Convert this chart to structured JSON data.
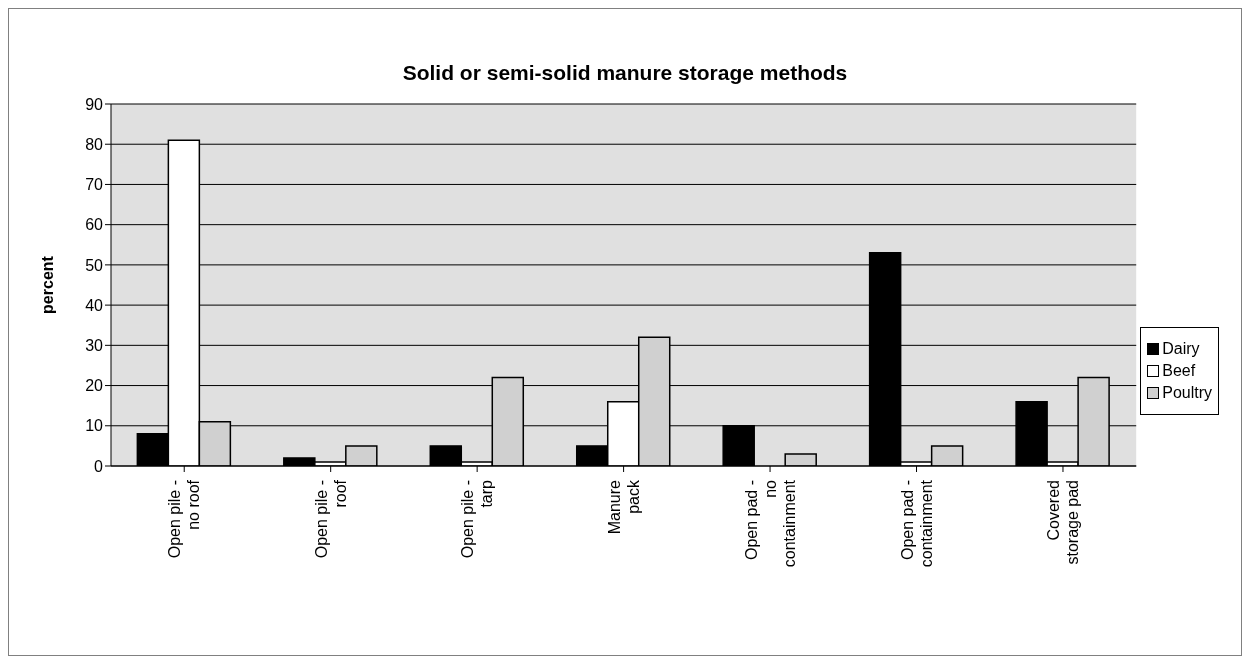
{
  "chart_data": {
    "type": "bar",
    "title": "Solid or semi-solid manure storage methods",
    "ylabel": "percent",
    "categories": [
      "Open pile -\nno roof",
      "Open pile -\nroof",
      "Open pile -\ntarp",
      "Manure\npack",
      "Open pad -\nno\ncontainment",
      "Open pad -\ncontainment",
      "Covered\nstorage pad"
    ],
    "series": [
      {
        "name": "Dairy",
        "color": "#000000",
        "values": [
          8,
          2,
          5,
          5,
          10,
          53,
          16
        ]
      },
      {
        "name": "Beef",
        "color": "#ffffff",
        "values": [
          81,
          1,
          1,
          16,
          0,
          1,
          1
        ]
      },
      {
        "name": "Poultry",
        "color": "#d0d0d0",
        "values": [
          11,
          5,
          22,
          32,
          3,
          5,
          22
        ]
      }
    ],
    "ylim": [
      0,
      90
    ],
    "yticks": [
      0,
      10,
      20,
      30,
      40,
      50,
      60,
      70,
      80,
      90
    ],
    "grid": "y",
    "legend": "right"
  }
}
